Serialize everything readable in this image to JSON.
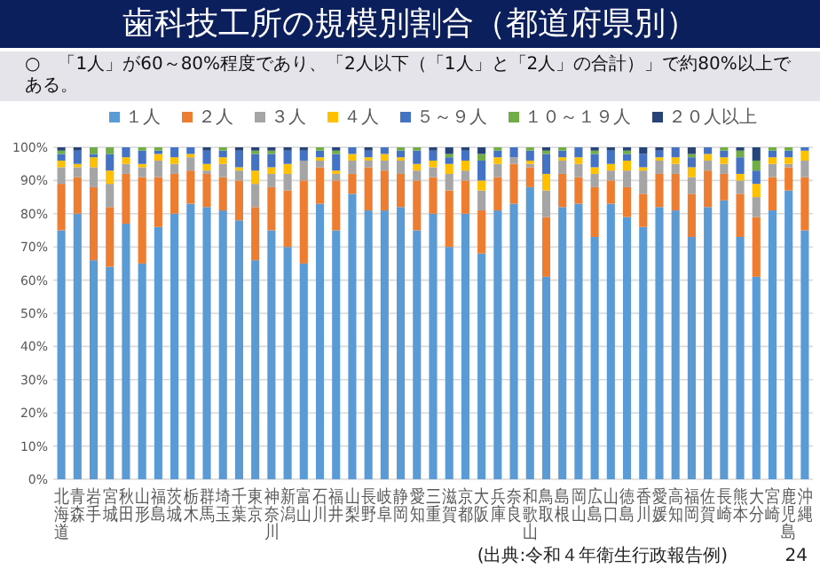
{
  "chart_data": {
    "type": "bar",
    "stacked": true,
    "title": "歯科技工所の規模別割合（都道府県別）",
    "subtitle": "○　「1人」が60～80%程度であり、「2人以下（「1人」と「2人」の合計）」で約80%以上である。",
    "categories": [
      "北海道",
      "青森",
      "岩手",
      "宮城",
      "秋田",
      "山形",
      "福島",
      "茨城",
      "栃木",
      "群馬",
      "埼玉",
      "千葉",
      "東京",
      "神奈川",
      "新潟",
      "富山",
      "石川",
      "福井",
      "山梨",
      "長野",
      "岐阜",
      "静岡",
      "愛知",
      "三重",
      "滋賀",
      "京都",
      "大阪",
      "兵庫",
      "奈良",
      "和歌山",
      "鳥取",
      "島根",
      "岡山",
      "広島",
      "山口",
      "徳島",
      "香川",
      "愛媛",
      "高知",
      "福岡",
      "佐賀",
      "長崎",
      "熊本",
      "大分",
      "宮崎",
      "鹿児島",
      "沖縄"
    ],
    "series": [
      {
        "name": "１人",
        "color": "#5b9bd5",
        "values": [
          75,
          80,
          66,
          64,
          77,
          65,
          76,
          80,
          83,
          82,
          81,
          78,
          66,
          75,
          70,
          65,
          83,
          75,
          86,
          81,
          81,
          82,
          75,
          80,
          70,
          80,
          68,
          81,
          83,
          88,
          61,
          82,
          83,
          73,
          83,
          79,
          76,
          82,
          81,
          73,
          82,
          84,
          73,
          61,
          81,
          87,
          75
        ]
      },
      {
        "name": "２人",
        "color": "#ed7d31",
        "values": [
          14,
          11,
          22,
          18,
          15,
          26,
          15,
          12,
          10,
          10,
          10,
          12,
          16,
          13,
          17,
          25,
          11,
          15,
          6,
          13,
          12,
          10,
          15,
          11,
          17,
          10,
          13,
          10,
          12,
          6,
          18,
          10,
          8,
          15,
          7,
          9,
          10,
          10,
          11,
          13,
          11,
          8,
          13,
          18,
          10,
          7,
          16
        ]
      },
      {
        "name": "３人",
        "color": "#a5a5a5",
        "values": [
          5,
          3,
          6,
          7,
          3,
          3,
          5,
          3,
          4,
          1,
          4,
          3,
          7,
          4,
          5,
          6,
          2,
          2,
          4,
          2,
          3,
          4,
          3,
          3,
          5,
          3,
          6,
          4,
          2,
          1,
          8,
          4,
          4,
          4,
          3,
          5,
          7,
          4,
          3,
          5,
          3,
          3,
          4,
          6,
          4,
          1,
          5
        ]
      },
      {
        "name": "４人",
        "color": "#ffc000",
        "values": [
          2,
          1,
          3,
          4,
          2,
          1,
          2,
          2,
          1,
          2,
          2,
          1,
          4,
          2,
          3,
          0,
          1,
          1,
          2,
          1,
          2,
          1,
          2,
          2,
          3,
          3,
          3,
          2,
          0,
          1,
          5,
          1,
          2,
          2,
          2,
          3,
          1,
          1,
          2,
          3,
          2,
          2,
          2,
          4,
          2,
          2,
          3
        ]
      },
      {
        "name": "５～９人",
        "color": "#4472c4",
        "values": [
          2,
          4,
          1,
          5,
          3,
          4,
          1,
          3,
          2,
          4,
          2,
          5,
          5,
          4,
          4,
          3,
          2,
          5,
          2,
          2,
          2,
          2,
          4,
          3,
          2,
          3,
          6,
          2,
          3,
          3,
          6,
          2,
          3,
          4,
          4,
          2,
          4,
          2,
          3,
          3,
          2,
          2,
          5,
          4,
          2,
          2,
          1
        ]
      },
      {
        "name": "１０～１９人",
        "color": "#70ad47",
        "values": [
          1,
          0,
          2,
          2,
          0,
          1,
          1,
          0,
          0,
          0,
          1,
          0,
          1,
          1,
          0,
          0,
          1,
          1,
          0,
          0,
          0,
          1,
          1,
          0,
          1,
          0,
          2,
          1,
          0,
          1,
          1,
          1,
          0,
          1,
          0,
          1,
          0,
          0,
          0,
          1,
          0,
          1,
          2,
          3,
          1,
          1,
          0
        ]
      },
      {
        "name": "２０人以上",
        "color": "#264478",
        "values": [
          1,
          1,
          0,
          0,
          0,
          0,
          0,
          0,
          0,
          1,
          0,
          1,
          1,
          1,
          1,
          1,
          0,
          1,
          0,
          1,
          0,
          0,
          0,
          1,
          2,
          1,
          2,
          0,
          0,
          0,
          1,
          0,
          0,
          1,
          1,
          1,
          2,
          1,
          0,
          2,
          0,
          0,
          1,
          4,
          0,
          0,
          0
        ]
      }
    ],
    "ylim": [
      0,
      100
    ],
    "yticks": [
      {
        "value": 0,
        "label": "0%"
      },
      {
        "value": 10,
        "label": "10%"
      },
      {
        "value": 20,
        "label": "20%"
      },
      {
        "value": 30,
        "label": "30%"
      },
      {
        "value": 40,
        "label": "40%"
      },
      {
        "value": 50,
        "label": "50%"
      },
      {
        "value": 60,
        "label": "60%"
      },
      {
        "value": 70,
        "label": "70%"
      },
      {
        "value": 80,
        "label": "80%"
      },
      {
        "value": 90,
        "label": "90%"
      },
      {
        "value": 100,
        "label": "100%"
      }
    ],
    "grid": "y",
    "legend": "top",
    "annotations": [
      "(出典:令和４年衛生行政報告例)",
      "24"
    ]
  }
}
